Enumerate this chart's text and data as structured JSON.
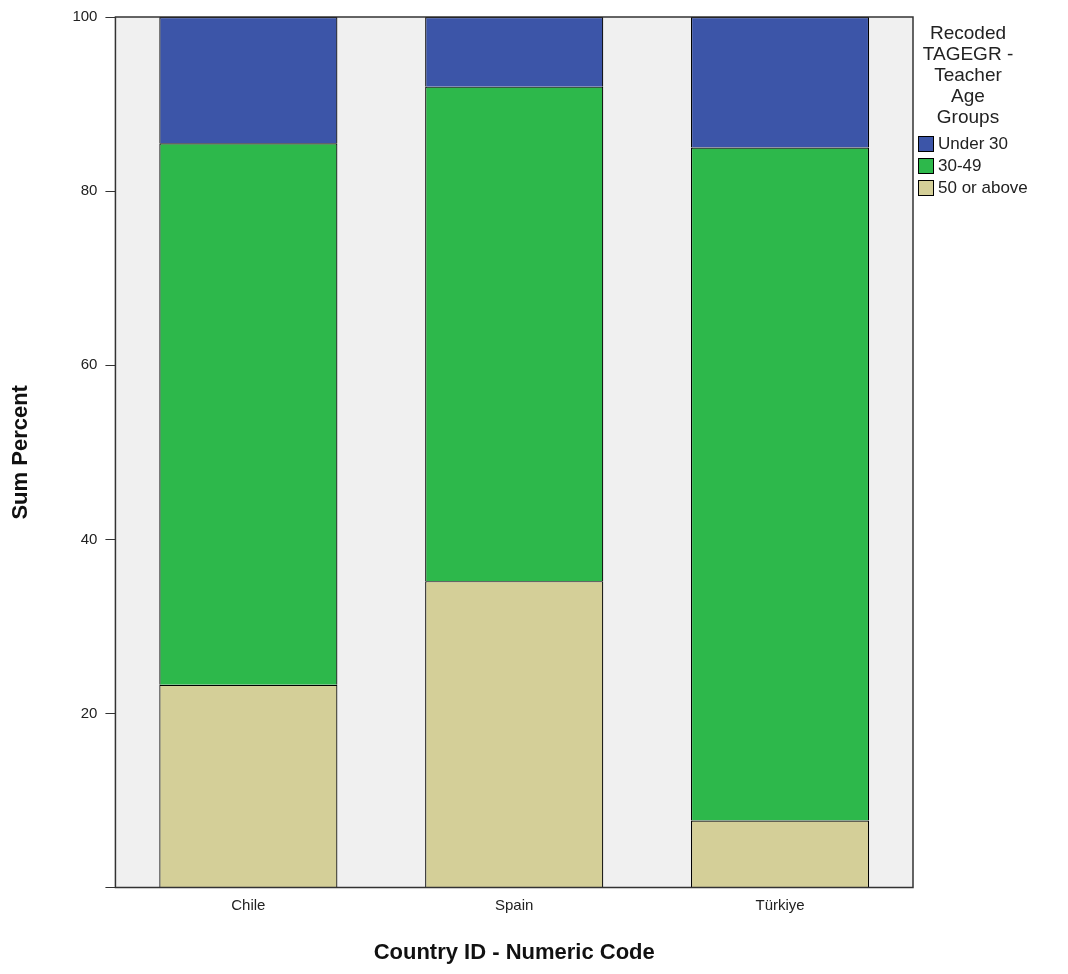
{
  "chart_data": {
    "type": "bar",
    "stacked": true,
    "xlabel": "Country ID - Numeric Code",
    "ylabel": "Sum Percent",
    "legend_title": "Recoded TAGEGR - Teacher Age Groups",
    "legend": "right",
    "grid": false,
    "categories": [
      "Chile",
      "Spain",
      "Türkiye"
    ],
    "ylim": [
      0,
      100
    ],
    "yticks": [
      {
        "value": 0,
        "label": null
      },
      20,
      40,
      60,
      80,
      100
    ],
    "series": [
      {
        "name": "50 or above",
        "color": "#d4cf98",
        "values": [
          23.3,
          35.2,
          7.7
        ]
      },
      {
        "name": "30-49",
        "color": "#2db84b",
        "values": [
          62.2,
          56.8,
          77.3
        ]
      },
      {
        "name": "Under 30",
        "color": "#3c55a8",
        "values": [
          14.5,
          8.0,
          15.0
        ]
      }
    ]
  }
}
